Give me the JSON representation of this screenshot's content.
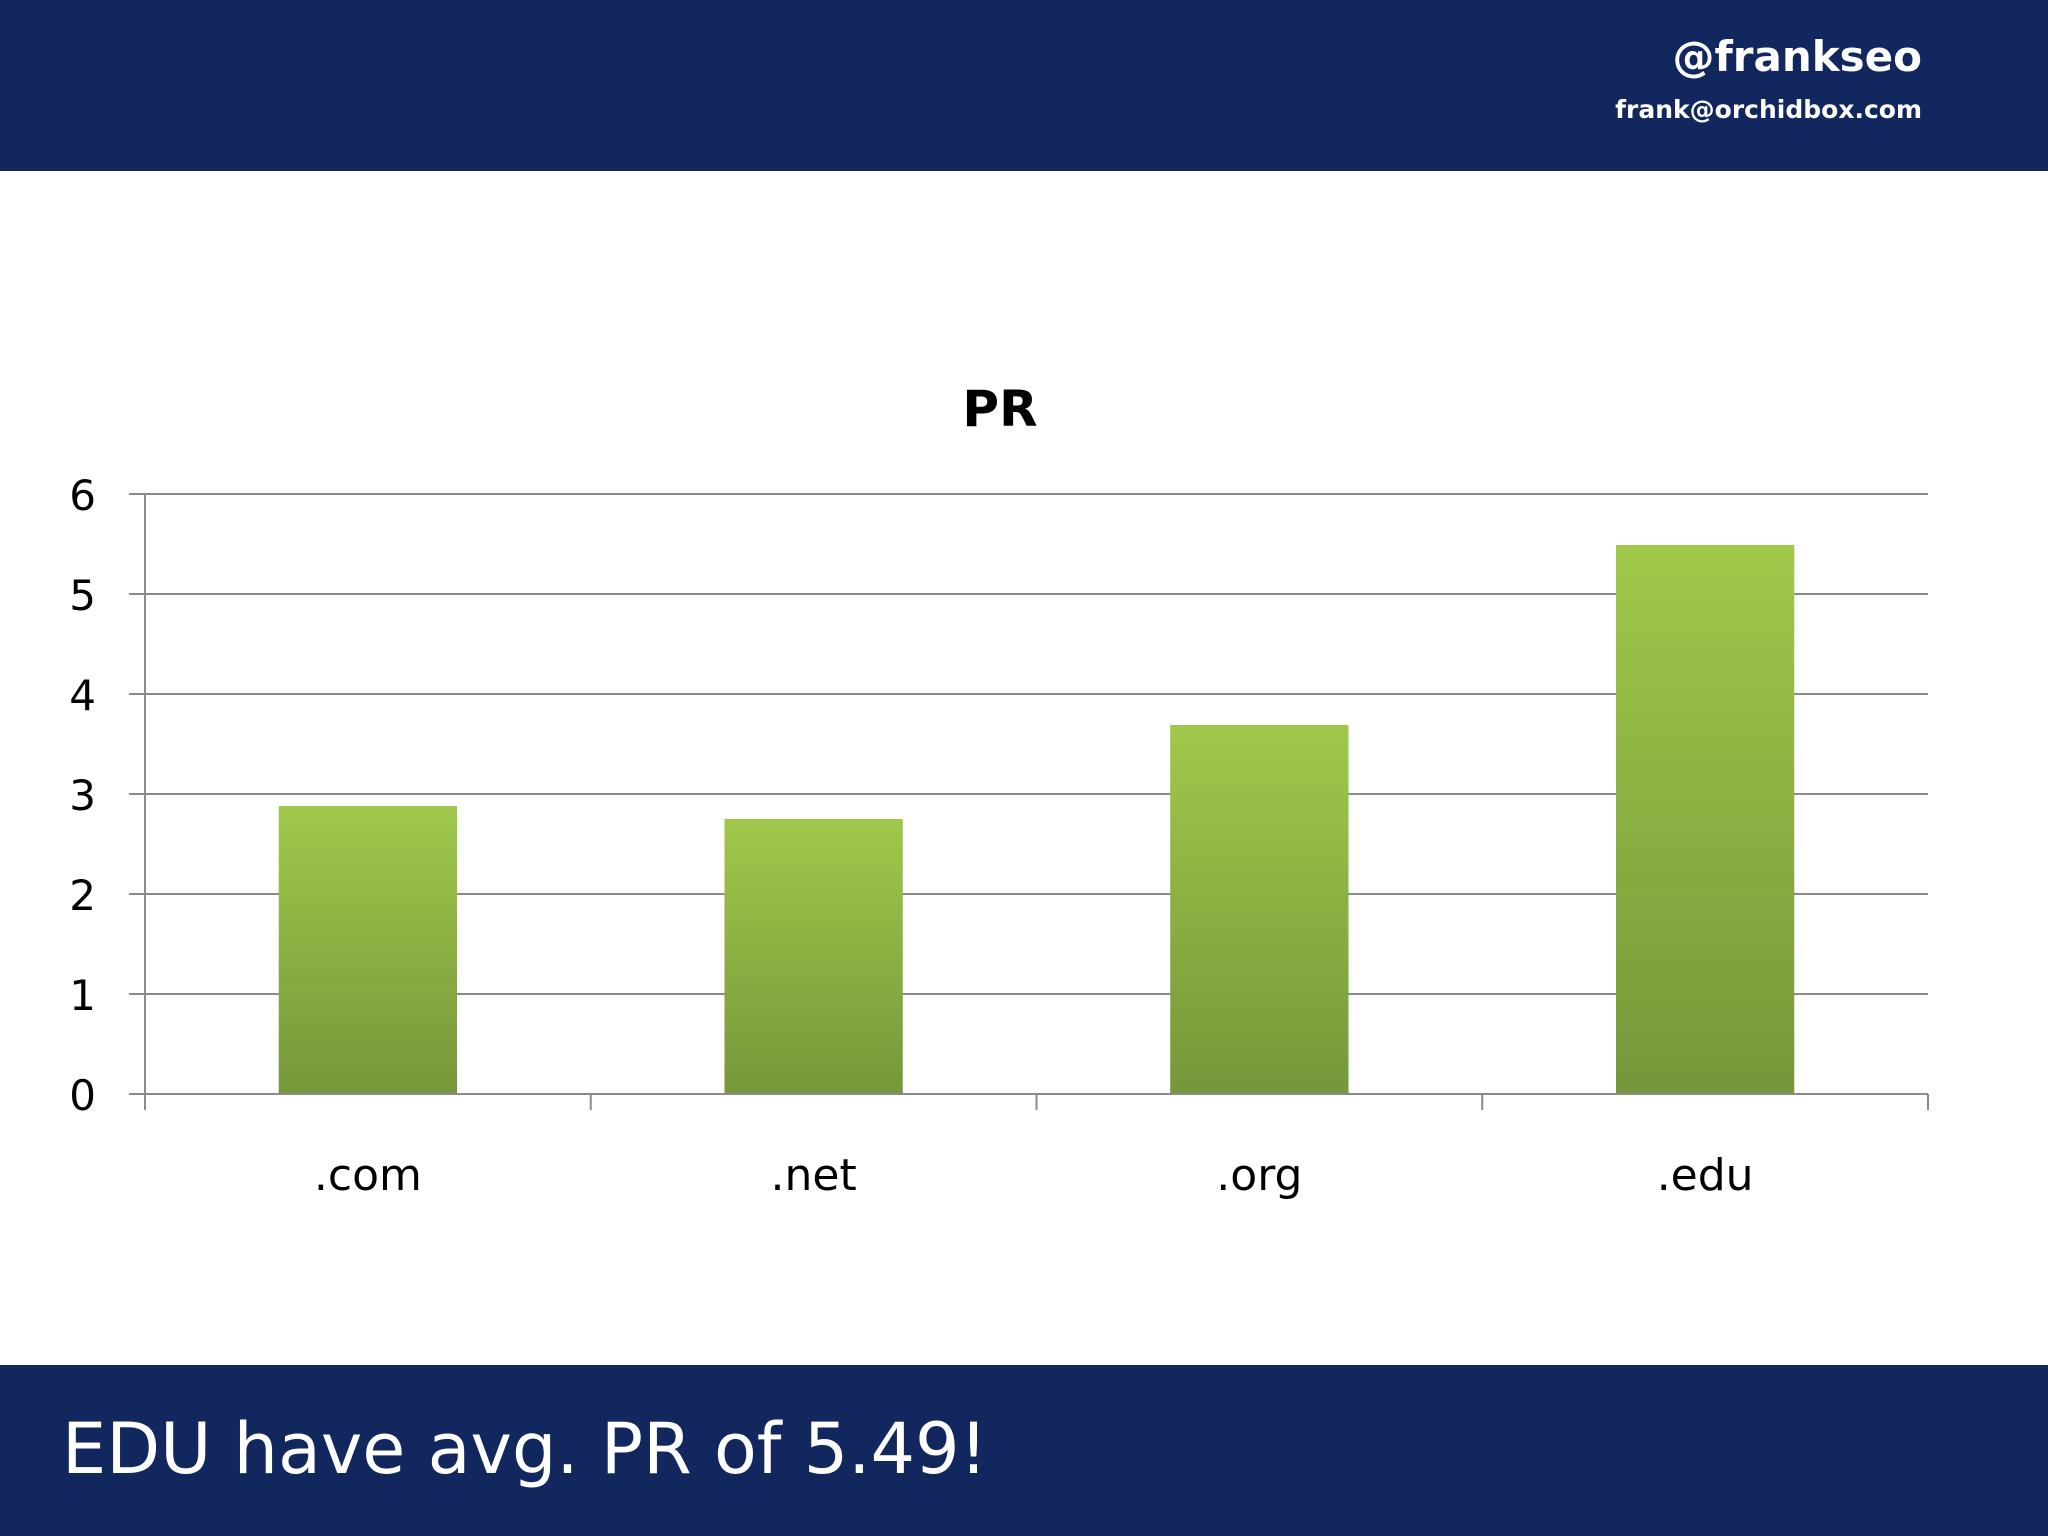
{
  "header": {
    "handle": "@frankseo",
    "email": "frank@orchidbox.com"
  },
  "footer": {
    "caption": "EDU have avg. PR of 5.49!"
  },
  "colors": {
    "banner": "#12275e",
    "bar_top": "#a0c84a",
    "bar_bottom": "#76973a",
    "gridline": "#8a8a8a"
  },
  "chart_data": {
    "type": "bar",
    "title": "PR",
    "categories": [
      ".com",
      ".net",
      ".org",
      ".edu"
    ],
    "values": [
      2.88,
      2.75,
      3.69,
      5.49
    ],
    "ylim": [
      0,
      6
    ],
    "yticks": [
      0,
      1,
      2,
      3,
      4,
      5,
      6
    ],
    "grid": true,
    "legend": "none"
  }
}
